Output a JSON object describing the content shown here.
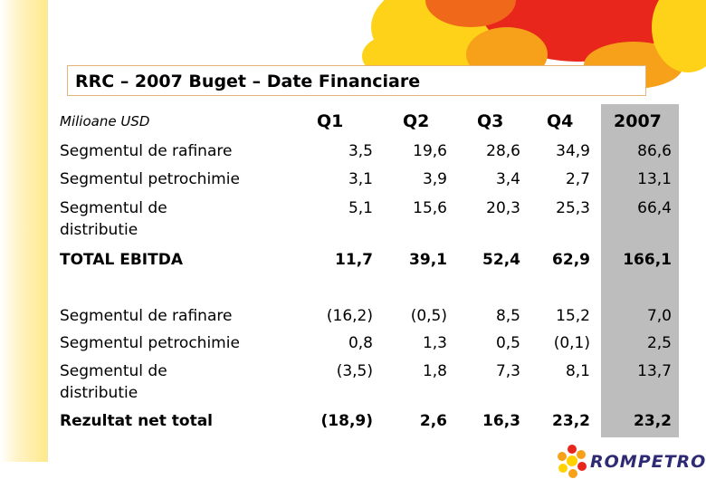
{
  "slide": {
    "title": "RRC – 2007 Buget – Date Financiare",
    "unit_label": "Milioane USD",
    "columns": [
      "Q1",
      "Q2",
      "Q3",
      "Q4",
      "2007"
    ],
    "rows": [
      {
        "label": "Segmentul de rafinare",
        "values": [
          "3,5",
          "19,6",
          "28,6",
          "34,9",
          "86,6"
        ],
        "bold": false
      },
      {
        "label": "Segmentul petrochimie",
        "values": [
          "3,1",
          "3,9",
          "3,4",
          "2,7",
          "13,1"
        ],
        "bold": false
      },
      {
        "label": "Segmentul de distributie",
        "values": [
          "5,1",
          "15,6",
          "20,3",
          "25,3",
          "66,4"
        ],
        "bold": false
      },
      {
        "label": "TOTAL EBITDA",
        "values": [
          "11,7",
          "39,1",
          "52,4",
          "62,9",
          "166,1"
        ],
        "bold": true
      },
      {
        "label": "Segmentul de rafinare",
        "values": [
          "(16,2)",
          "(0,5)",
          "8,5",
          "15,2",
          "7,0"
        ],
        "bold": false
      },
      {
        "label": "Segmentul petrochimie",
        "values": [
          "0,8",
          "1,3",
          "0,5",
          "(0,1)",
          "2,5"
        ],
        "bold": false
      },
      {
        "label": "Segmentul de distributie",
        "values": [
          "(3,5)",
          "1,8",
          "7,3",
          "8,1",
          "13,7"
        ],
        "bold": false
      },
      {
        "label": "Rezultat net total",
        "values": [
          "(18,9)",
          "2,6",
          "16,3",
          "23,2",
          "23,2"
        ],
        "bold": true
      }
    ],
    "highlight_color": "#bdbdbd"
  },
  "logo": {
    "text": "ROMPETROL",
    "colors": [
      "#e8261c",
      "#f7a11a",
      "#ffd200"
    ]
  }
}
